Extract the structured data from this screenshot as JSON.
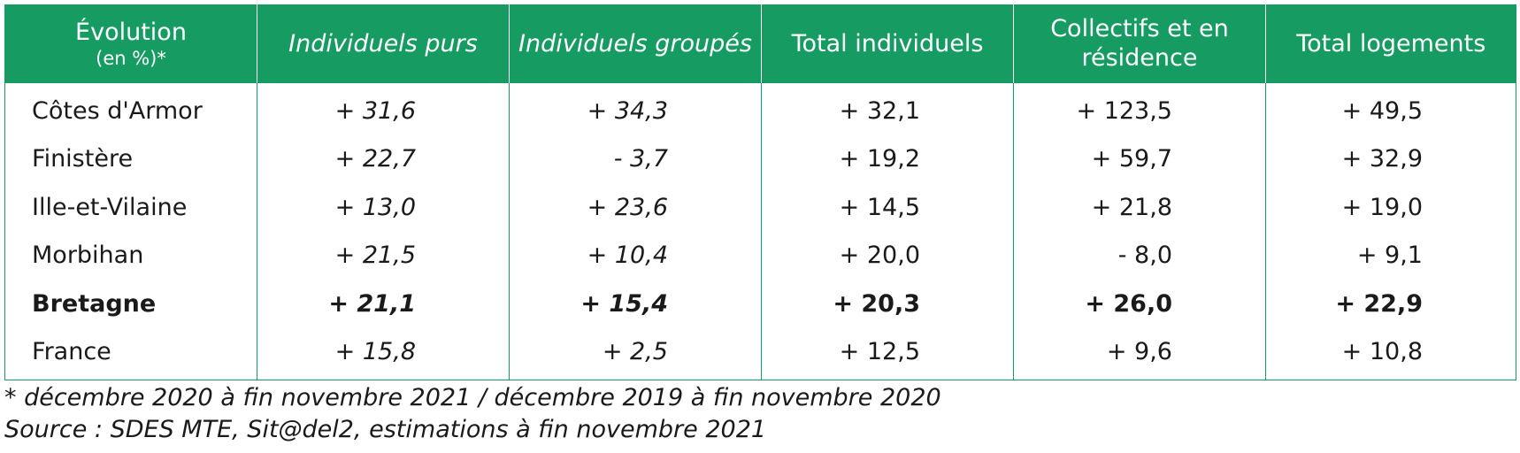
{
  "colors": {
    "header_bg": "#169b62",
    "header_text": "#ffffff",
    "border": "#169b62"
  },
  "header": {
    "col0_line1": "Évolution",
    "col0_line2": "(en %)*",
    "col1": "Individuels purs",
    "col2": "Individuels groupés",
    "col3": "Total individuels",
    "col4": "Collectifs et en résidence",
    "col5": "Total logements"
  },
  "rows": [
    {
      "name": "Côtes d'Armor",
      "values": [
        "+ 31,6",
        "+ 34,3",
        "+ 32,1",
        "+ 123,5",
        "+ 49,5"
      ],
      "bold": false
    },
    {
      "name": "Finistère",
      "values": [
        "+ 22,7",
        "- 3,7",
        "+ 19,2",
        "+ 59,7",
        "+ 32,9"
      ],
      "bold": false
    },
    {
      "name": "Ille-et-Vilaine",
      "values": [
        "+ 13,0",
        "+ 23,6",
        "+ 14,5",
        "+ 21,8",
        "+ 19,0"
      ],
      "bold": false
    },
    {
      "name": "Morbihan",
      "values": [
        "+ 21,5",
        "+ 10,4",
        "+ 20,0",
        "- 8,0",
        "+ 9,1"
      ],
      "bold": false
    },
    {
      "name": "Bretagne",
      "values": [
        "+ 21,1",
        "+ 15,4",
        "+ 20,3",
        "+ 26,0",
        "+ 22,9"
      ],
      "bold": true
    },
    {
      "name": "France",
      "values": [
        "+ 15,8",
        "+ 2,5",
        "+ 12,5",
        "+ 9,6",
        "+ 10,8"
      ],
      "bold": false
    }
  ],
  "notes": {
    "footnote": "* décembre 2020 à fin novembre 2021 / décembre 2019 à fin novembre 2020",
    "source": "Source : SDES MTE, Sit@del2, estimations à fin novembre 2021"
  }
}
